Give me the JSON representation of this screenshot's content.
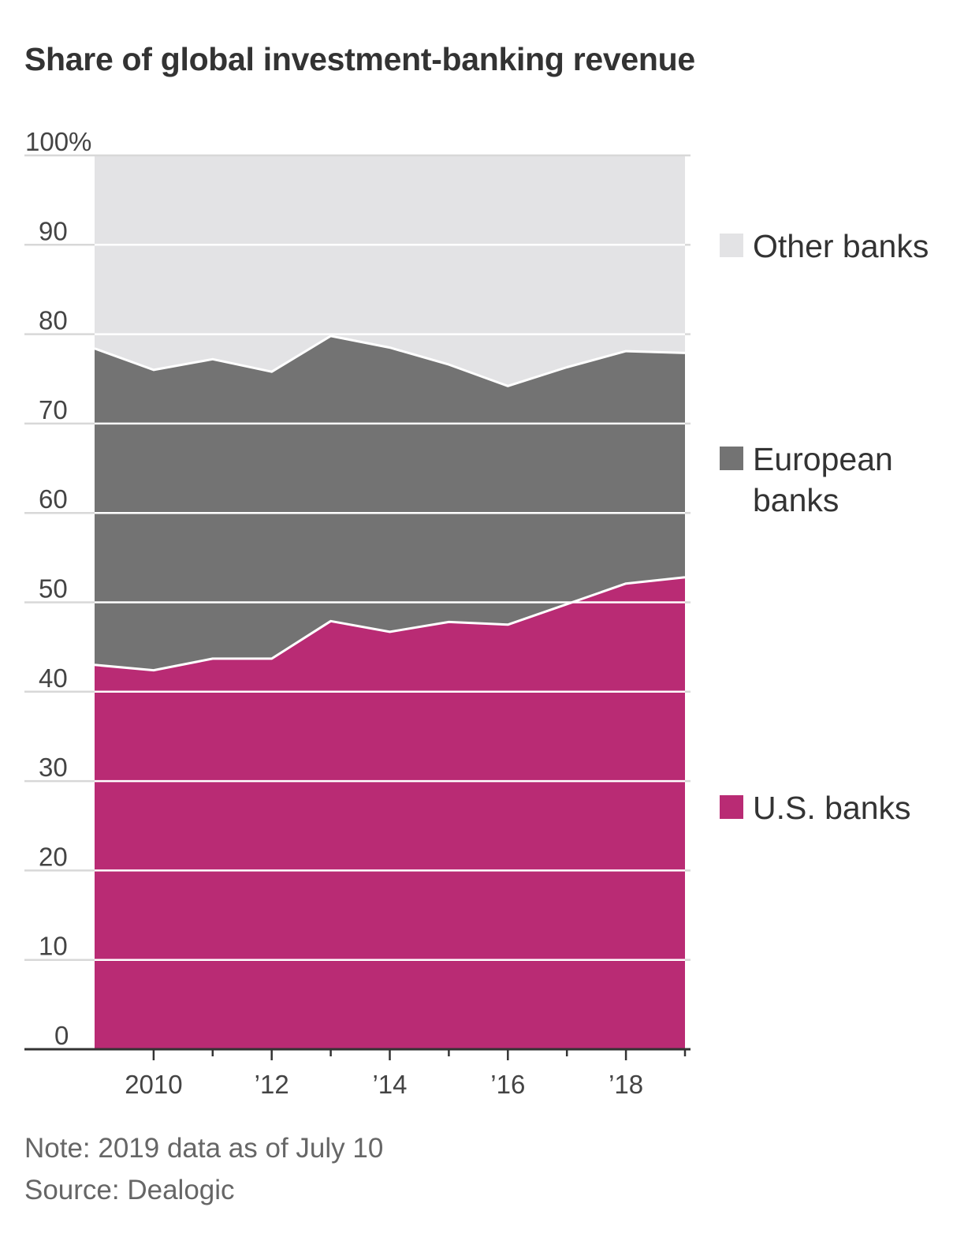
{
  "chart_data": {
    "type": "area",
    "stacked": true,
    "title": "Share of global investment-banking revenue",
    "x": [
      2009,
      2010,
      2011,
      2012,
      2013,
      2014,
      2015,
      2016,
      2017,
      2018,
      2019
    ],
    "x_tick_values": [
      2010,
      2012,
      2014,
      2016,
      2018
    ],
    "x_tick_labels": [
      "2010",
      "’12",
      "’14",
      "’16",
      "’18"
    ],
    "y_tick_values": [
      0,
      10,
      20,
      30,
      40,
      50,
      60,
      70,
      80,
      90,
      100
    ],
    "y_tick_labels": [
      "0",
      "10",
      "20",
      "30",
      "40",
      "50",
      "60",
      "70",
      "80",
      "90",
      "100%"
    ],
    "ylim": [
      0,
      100
    ],
    "grid": true,
    "legend_position": "right",
    "series": [
      {
        "name": "U.S. banks",
        "color": "#b92b74",
        "values": [
          43.0,
          42.4,
          43.7,
          43.7,
          47.9,
          46.7,
          47.8,
          47.5,
          49.8,
          52.1,
          52.8
        ]
      },
      {
        "name": "European banks",
        "color": "#737373",
        "values": [
          35.4,
          33.6,
          33.5,
          32.1,
          31.9,
          31.8,
          28.8,
          26.7,
          26.5,
          26.0,
          25.1
        ]
      },
      {
        "name": "Other banks",
        "color": "#e3e3e5",
        "values": [
          21.6,
          24.0,
          22.8,
          24.2,
          20.2,
          21.5,
          23.4,
          25.8,
          23.7,
          21.9,
          22.1
        ]
      }
    ],
    "legend": [
      {
        "series": "Other banks",
        "lines": [
          "Other banks"
        ]
      },
      {
        "series": "European banks",
        "lines": [
          "European",
          "banks"
        ]
      },
      {
        "series": "U.S. banks",
        "lines": [
          "U.S. banks"
        ]
      }
    ],
    "note": "Note: 2019 data as of July 10",
    "source": "Source: Dealogic"
  }
}
